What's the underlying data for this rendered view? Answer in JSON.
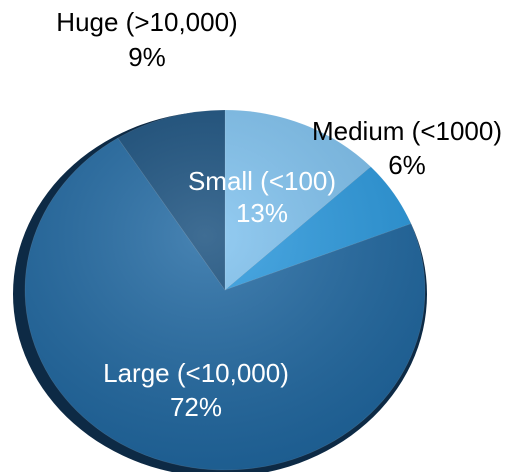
{
  "chart_data": {
    "type": "pie",
    "title": "",
    "start_angle_deg": 0,
    "direction": "clockwise",
    "slices": [
      {
        "label": "Small (<100)",
        "percent_label": "13%",
        "value": 13,
        "color": "#7ec2f0",
        "label_inside": true
      },
      {
        "label": "Medium (<1000)",
        "percent_label": "6%",
        "value": 6,
        "color": "#2a9ae0",
        "label_inside": false
      },
      {
        "label": "Large (<10,000)",
        "percent_label": "72%",
        "value": 72,
        "color": "#1f68a2",
        "label_inside": true
      },
      {
        "label": "Huge (>10,000)",
        "percent_label": "9%",
        "value": 9,
        "color": "#154d7c",
        "label_inside": false
      }
    ]
  }
}
